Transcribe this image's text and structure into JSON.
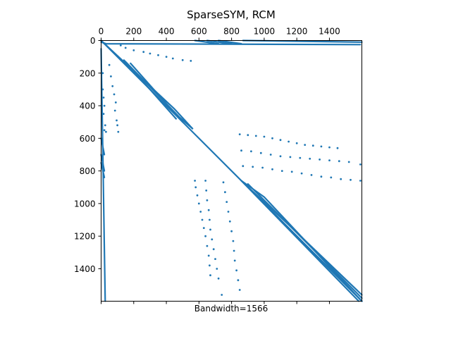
{
  "chart_data": {
    "type": "scatter",
    "title": "SparseSYM, RCM",
    "xlabel": "Bandwidth=1566",
    "ylabel": "",
    "xlim": [
      0,
      1599
    ],
    "ylim": [
      1599,
      0
    ],
    "x_axis_position": "top",
    "y_axis_inverted": true,
    "grid": false,
    "legend": "none",
    "marker_color": "#1f77b4",
    "x_ticks": [
      0,
      200,
      400,
      600,
      800,
      1000,
      1200,
      1400
    ],
    "y_ticks": [
      0,
      200,
      400,
      600,
      800,
      1000,
      1200,
      1400
    ],
    "x_tick_labels": [
      "0",
      "200",
      "400",
      "600",
      "800",
      "1000",
      "1200",
      "1400"
    ],
    "y_tick_labels": [
      "0",
      "200",
      "400",
      "600",
      "800",
      "1000",
      "1200",
      "1400"
    ],
    "series": [
      {
        "kind": "line",
        "points": [
          [
            0,
            0
          ],
          [
            1599,
            1599
          ]
        ]
      },
      {
        "kind": "line",
        "points": [
          [
            0,
            0
          ],
          [
            450,
            420
          ],
          [
            560,
            540
          ]
        ]
      },
      {
        "kind": "line",
        "points": [
          [
            150,
            130
          ],
          [
            480,
            470
          ],
          [
            560,
            540
          ]
        ]
      },
      {
        "kind": "line",
        "points": [
          [
            180,
            140
          ],
          [
            500,
            500
          ]
        ]
      },
      {
        "kind": "line",
        "points": [
          [
            140,
            120
          ],
          [
            460,
            480
          ]
        ]
      },
      {
        "kind": "line",
        "points": [
          [
            860,
            860
          ],
          [
            1580,
            1599
          ]
        ]
      },
      {
        "kind": "line",
        "points": [
          [
            860,
            860
          ],
          [
            1000,
            960
          ],
          [
            1599,
            1599
          ]
        ]
      },
      {
        "kind": "line",
        "points": [
          [
            880,
            880
          ],
          [
            1150,
            1130
          ],
          [
            1599,
            1560
          ]
        ]
      },
      {
        "kind": "line",
        "points": [
          [
            900,
            880
          ],
          [
            1200,
            1180
          ],
          [
            1599,
            1580
          ]
        ]
      },
      {
        "kind": "line",
        "points": [
          [
            900,
            900
          ],
          [
            1600,
            1599
          ]
        ]
      },
      {
        "kind": "line",
        "points": [
          [
            0,
            0
          ],
          [
            20,
            20
          ]
        ]
      },
      {
        "kind": "line",
        "points": [
          [
            0,
            600
          ],
          [
            20,
            700
          ]
        ]
      },
      {
        "kind": "line",
        "points": [
          [
            0,
            700
          ],
          [
            20,
            800
          ]
        ]
      },
      {
        "kind": "line",
        "points": [
          [
            0,
            750
          ],
          [
            20,
            840
          ]
        ]
      },
      {
        "kind": "line",
        "points": [
          [
            0,
            10
          ],
          [
            30,
            20
          ],
          [
            1590,
            25
          ]
        ]
      },
      {
        "kind": "line",
        "points": [
          [
            575,
            0
          ],
          [
            720,
            20
          ]
        ]
      },
      {
        "kind": "line",
        "points": [
          [
            650,
            0
          ],
          [
            800,
            20
          ]
        ]
      },
      {
        "kind": "line",
        "points": [
          [
            720,
            0
          ],
          [
            860,
            20
          ]
        ]
      },
      {
        "kind": "line",
        "points": [
          [
            870,
            0
          ],
          [
            1599,
            10
          ]
        ]
      },
      {
        "kind": "line",
        "points": [
          [
            0,
            50
          ],
          [
            25,
            1599
          ]
        ]
      },
      {
        "kind": "dots",
        "points": [
          [
            10,
            200
          ],
          [
            10,
            300
          ],
          [
            15,
            350
          ],
          [
            20,
            400
          ],
          [
            15,
            450
          ],
          [
            25,
            520
          ],
          [
            20,
            550
          ],
          [
            30,
            560
          ]
        ]
      },
      {
        "kind": "dots",
        "points": [
          [
            50,
            150
          ],
          [
            60,
            220
          ],
          [
            70,
            280
          ],
          [
            80,
            330
          ],
          [
            90,
            380
          ],
          [
            85,
            430
          ],
          [
            95,
            490
          ],
          [
            100,
            520
          ],
          [
            105,
            560
          ]
        ]
      },
      {
        "kind": "dots",
        "points": [
          [
            120,
            30
          ],
          [
            150,
            45
          ],
          [
            200,
            60
          ],
          [
            260,
            70
          ],
          [
            300,
            80
          ],
          [
            350,
            90
          ],
          [
            400,
            100
          ],
          [
            440,
            110
          ],
          [
            500,
            120
          ],
          [
            550,
            125
          ]
        ]
      },
      {
        "kind": "dots",
        "points": [
          [
            850,
            575
          ],
          [
            900,
            580
          ],
          [
            950,
            585
          ],
          [
            1000,
            590
          ],
          [
            1050,
            600
          ],
          [
            1100,
            610
          ],
          [
            1150,
            620
          ],
          [
            1200,
            630
          ],
          [
            1250,
            640
          ],
          [
            1300,
            645
          ],
          [
            1350,
            650
          ],
          [
            1400,
            655
          ],
          [
            1450,
            660
          ]
        ]
      },
      {
        "kind": "dots",
        "points": [
          [
            860,
            675
          ],
          [
            920,
            680
          ],
          [
            980,
            690
          ],
          [
            1040,
            700
          ],
          [
            1100,
            710
          ],
          [
            1160,
            715
          ],
          [
            1220,
            720
          ],
          [
            1280,
            725
          ],
          [
            1340,
            730
          ],
          [
            1400,
            735
          ],
          [
            1460,
            740
          ],
          [
            1520,
            745
          ],
          [
            1590,
            760
          ]
        ]
      },
      {
        "kind": "dots",
        "points": [
          [
            870,
            770
          ],
          [
            930,
            775
          ],
          [
            990,
            780
          ],
          [
            1050,
            790
          ],
          [
            1110,
            800
          ],
          [
            1170,
            805
          ],
          [
            1230,
            815
          ],
          [
            1290,
            825
          ],
          [
            1350,
            835
          ],
          [
            1410,
            840
          ],
          [
            1470,
            850
          ],
          [
            1530,
            855
          ],
          [
            1590,
            860
          ]
        ]
      },
      {
        "kind": "dots",
        "points": [
          [
            575,
            860
          ],
          [
            580,
            900
          ],
          [
            590,
            950
          ],
          [
            600,
            1000
          ],
          [
            610,
            1050
          ],
          [
            620,
            1100
          ],
          [
            630,
            1150
          ],
          [
            640,
            1200
          ],
          [
            650,
            1260
          ],
          [
            660,
            1320
          ],
          [
            665,
            1380
          ],
          [
            670,
            1440
          ]
        ]
      },
      {
        "kind": "dots",
        "points": [
          [
            640,
            860
          ],
          [
            645,
            920
          ],
          [
            650,
            980
          ],
          [
            660,
            1040
          ],
          [
            665,
            1100
          ],
          [
            670,
            1160
          ],
          [
            680,
            1220
          ],
          [
            690,
            1280
          ],
          [
            700,
            1340
          ],
          [
            710,
            1400
          ],
          [
            720,
            1460
          ],
          [
            740,
            1560
          ]
        ]
      },
      {
        "kind": "dots",
        "points": [
          [
            750,
            870
          ],
          [
            760,
            930
          ],
          [
            770,
            990
          ],
          [
            780,
            1050
          ],
          [
            790,
            1110
          ],
          [
            800,
            1170
          ],
          [
            810,
            1230
          ],
          [
            815,
            1290
          ],
          [
            820,
            1350
          ],
          [
            830,
            1410
          ],
          [
            840,
            1470
          ],
          [
            850,
            1530
          ]
        ]
      }
    ]
  }
}
